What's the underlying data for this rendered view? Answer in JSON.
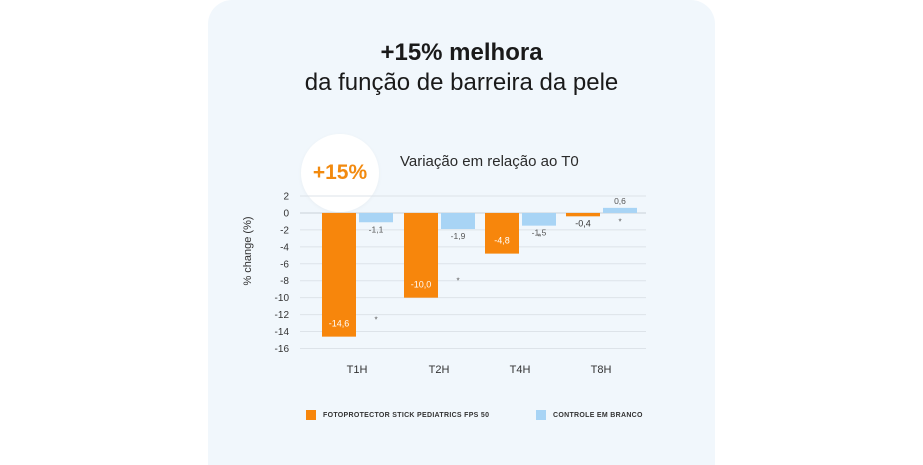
{
  "header": {
    "title_bold": "+15% melhora",
    "title_rest": "da função de barreira da pele"
  },
  "badge": {
    "text": "+15%"
  },
  "chart_data": {
    "type": "bar",
    "title": "Variação em relação ao T0",
    "ylabel": "% change (%)",
    "xlabel": "",
    "categories": [
      "T1H",
      "T2H",
      "T4H",
      "T8H"
    ],
    "ylim": [
      -16,
      2
    ],
    "yticks": [
      2,
      0,
      -2,
      -4,
      -6,
      -8,
      -10,
      -12,
      -14,
      -16
    ],
    "grid": true,
    "legend_position": "bottom",
    "series": [
      {
        "name": "FOTOPROTECTOR STICK PEDIATRICS FPS 50",
        "color": "#f7860c",
        "values": [
          -14.6,
          -10.0,
          -4.8,
          -0.4
        ],
        "labels": [
          "-14,6",
          "-10,0",
          "-4,8",
          "-0,4"
        ]
      },
      {
        "name": "CONTROLE EM BRANCO",
        "color": "#a8d4f5",
        "values": [
          -1.1,
          -1.9,
          -1.5,
          0.6
        ],
        "labels": [
          "-1,1",
          "-1,9",
          "-1,5",
          "0,6"
        ]
      }
    ],
    "significance": [
      "*",
      "*",
      "*",
      "*"
    ]
  }
}
